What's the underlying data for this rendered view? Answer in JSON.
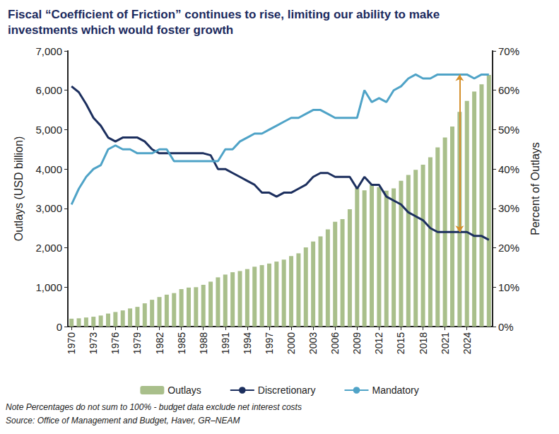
{
  "chart_data": {
    "type": "bar",
    "title": "Fiscal “Coefficient of Friction” continues to rise, limiting our ability to make investments which would foster growth",
    "x_label": null,
    "y_label": "Outlays (USD billion)",
    "y2_label": "Percent of Outlays",
    "notes": [
      "Note Percentages do not sum to 100% - budget data exclude net interest costs",
      "Source: Office of Management and Budget, Haver, GR–NEAM"
    ],
    "x": [
      1970,
      1971,
      1972,
      1973,
      1974,
      1975,
      1976,
      1977,
      1978,
      1979,
      1980,
      1981,
      1982,
      1983,
      1984,
      1985,
      1986,
      1987,
      1988,
      1989,
      1990,
      1991,
      1992,
      1993,
      1994,
      1995,
      1996,
      1997,
      1998,
      1999,
      2000,
      2001,
      2002,
      2003,
      2004,
      2005,
      2006,
      2007,
      2008,
      2009,
      2010,
      2011,
      2012,
      2013,
      2014,
      2015,
      2016,
      2017,
      2018,
      2019,
      2020,
      2021,
      2022,
      2023,
      2024,
      2025,
      2026,
      2027
    ],
    "xlim": [
      1969.5,
      2027.5
    ],
    "xticks": [
      1970,
      1973,
      1976,
      1979,
      1982,
      1985,
      1988,
      1991,
      1994,
      1997,
      2000,
      2003,
      2006,
      2009,
      2012,
      2015,
      2018,
      2021,
      2024
    ],
    "ylim": [
      0,
      7000
    ],
    "yticks": [
      0,
      {
        "value": 1000,
        "label": "1,000"
      },
      {
        "value": 2000,
        "label": "2,000"
      },
      {
        "value": 3000,
        "label": "3,000"
      },
      {
        "value": 4000,
        "label": "4,000"
      },
      {
        "value": 5000,
        "label": "5,000"
      },
      {
        "value": 6000,
        "label": "6,000"
      },
      {
        "value": 7000,
        "label": "7,000"
      }
    ],
    "y2lim": [
      0,
      70
    ],
    "y2ticks": [
      {
        "value": 0,
        "label": "0%"
      },
      {
        "value": 10,
        "label": "10%"
      },
      {
        "value": 20,
        "label": "20%"
      },
      {
        "value": 30,
        "label": "30%"
      },
      {
        "value": 40,
        "label": "40%"
      },
      {
        "value": 50,
        "label": "50%"
      },
      {
        "value": 60,
        "label": "60%"
      },
      {
        "value": 70,
        "label": "70%"
      }
    ],
    "grid": false,
    "legend": "bottom",
    "series": [
      {
        "name": "Outlays",
        "type": "bar",
        "color": "#a9bf8b",
        "values": [
          200,
          210,
          230,
          250,
          280,
          330,
          370,
          410,
          460,
          500,
          590,
          680,
          750,
          810,
          850,
          950,
          990,
          1000,
          1060,
          1140,
          1250,
          1320,
          1380,
          1410,
          1460,
          1520,
          1560,
          1600,
          1650,
          1700,
          1790,
          1860,
          2010,
          2160,
          2290,
          2470,
          2660,
          2730,
          2980,
          3520,
          3460,
          3600,
          3540,
          3450,
          3510,
          3700,
          3850,
          3980,
          4110,
          4300,
          4550,
          4800,
          5080,
          5450,
          5730,
          5970,
          6150,
          6390
        ]
      },
      {
        "name": "Discretionary",
        "type": "line",
        "axis": "y2",
        "color": "#1c2f5e",
        "values": [
          61,
          59.5,
          56.5,
          53,
          51,
          48,
          47,
          48,
          48,
          48,
          47,
          45,
          44,
          44,
          44,
          44,
          44,
          44,
          44,
          43.5,
          40,
          40,
          39,
          38,
          37,
          36,
          34,
          34,
          33,
          34,
          34,
          35,
          36,
          38,
          39,
          39,
          38,
          38,
          38,
          35,
          38,
          36,
          36,
          33,
          32,
          31,
          29,
          28,
          27,
          25,
          24,
          24,
          24,
          24,
          24,
          23,
          23,
          22
        ]
      },
      {
        "name": "Mandatory",
        "type": "line",
        "axis": "y2",
        "color": "#4fa3c7",
        "values": [
          31,
          35,
          38,
          40,
          41,
          45,
          46,
          45,
          45,
          44,
          44,
          44,
          45,
          45,
          42,
          42,
          42,
          42,
          42,
          42,
          42,
          45,
          45,
          47,
          48,
          49,
          49,
          50,
          51,
          52,
          53,
          53,
          54,
          55,
          55,
          54,
          53,
          53,
          53,
          53,
          60,
          57,
          58,
          57,
          60,
          61,
          63,
          64,
          63,
          63,
          64,
          64,
          64,
          64,
          64,
          63,
          64,
          64
        ]
      }
    ],
    "gap_marker": {
      "x": 2023,
      "color": "#d4902c"
    }
  }
}
